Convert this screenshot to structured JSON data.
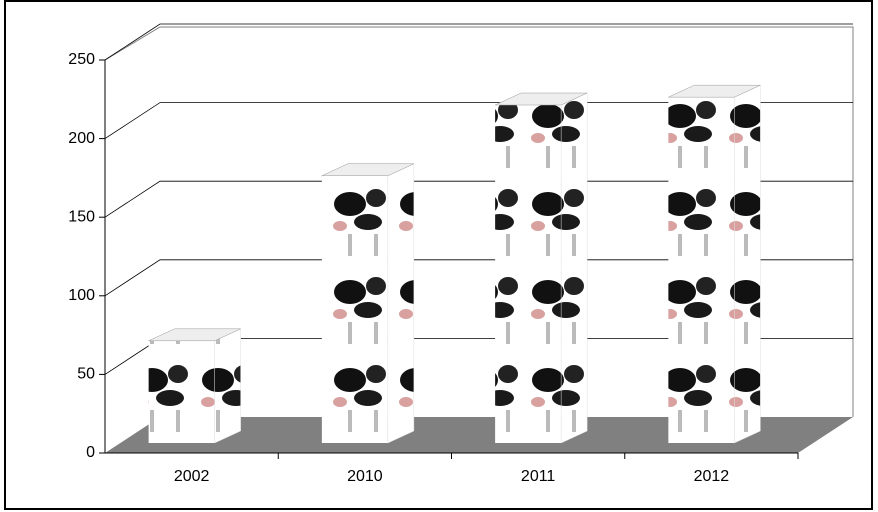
{
  "chart_data": {
    "type": "bar3d",
    "categories": [
      "2002",
      "2010",
      "2011",
      "2012"
    ],
    "values": [
      65,
      170,
      215,
      220
    ],
    "ylim": [
      0,
      250
    ],
    "yticks": [
      0,
      50,
      100,
      150,
      200,
      250
    ],
    "grid": true
  }
}
